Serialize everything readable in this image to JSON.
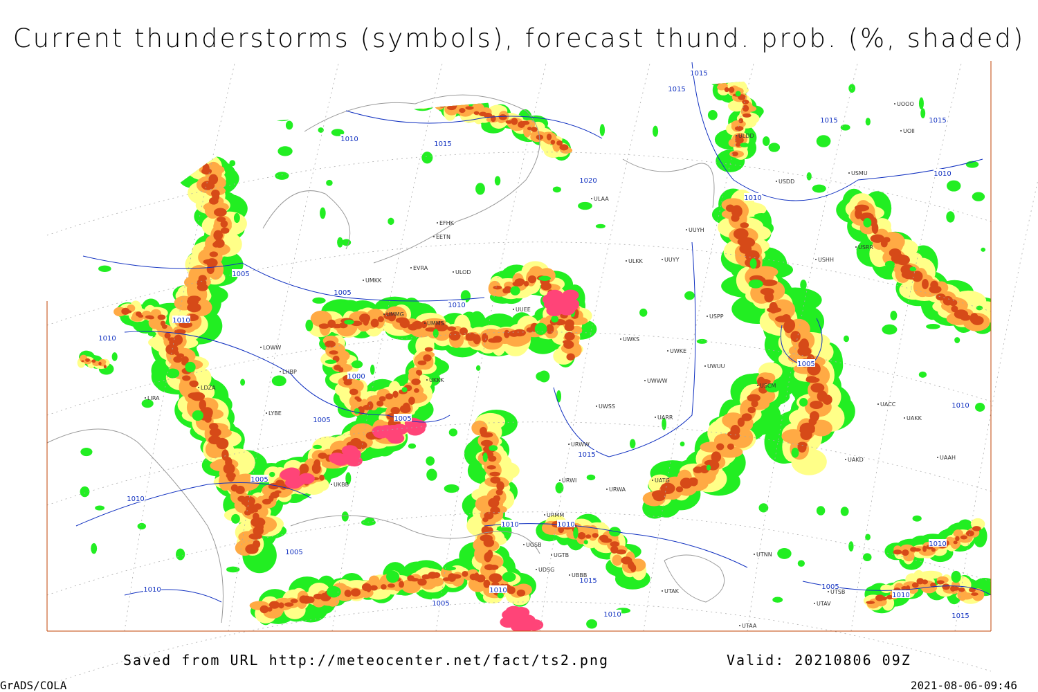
{
  "title": "Current thunderstorms (symbols), forecast thund. prob. (%, shaded)",
  "footer": {
    "source": "Saved from URL http://meteocenter.net/fact/ts2.png",
    "valid": "Valid: 20210806 09Z"
  },
  "credits": {
    "software": "GrADS/COLA",
    "timestamp": "2021-08-06-09:46"
  },
  "isobar_labels": [
    "1010",
    "1015",
    "1020",
    "1015",
    "1015",
    "1015",
    "1015",
    "1010",
    "1010",
    "1005",
    "1005",
    "1010",
    "1010",
    "1010",
    "1000",
    "1005",
    "1005",
    "1005",
    "1010",
    "1015",
    "1005",
    "1010",
    "1010",
    "1010",
    "1010",
    "1005",
    "1015",
    "1010",
    "1010",
    "1005",
    "1010",
    "1005",
    "1010",
    "1015"
  ],
  "stations": [
    "EFHK",
    "EETN",
    "EVRA",
    "ULOD",
    "UMKK",
    "UMMG",
    "UMMS",
    "UUEE",
    "UWKS",
    "UWKE",
    "UWUU",
    "UWWW",
    "UUYY",
    "ULKK",
    "UUYH",
    "ULAA",
    "USPP",
    "UWSS",
    "UARR",
    "URWW",
    "URWI",
    "UATG",
    "URWA",
    "UAKD",
    "UAKK",
    "UAAH",
    "UACC",
    "UTNN",
    "UTAK",
    "UTAA",
    "UTSB",
    "UTAV",
    "USCM",
    "USHH",
    "USRR",
    "UOOO",
    "UOII",
    "USMU",
    "USDD",
    "ULDD",
    "UKKK",
    "UKBB",
    "LYBE",
    "LDZA",
    "LHBP",
    "LOWW",
    "LIRA",
    "UGTB",
    "UBBB",
    "UGSB",
    "UDSG",
    "URMM"
  ]
}
